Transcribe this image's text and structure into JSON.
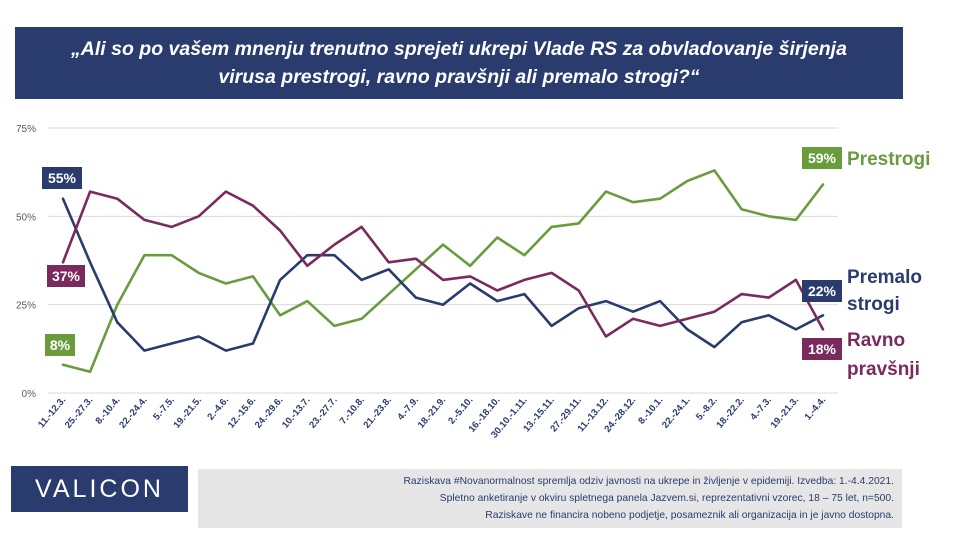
{
  "title": {
    "line1": "„Ali so po vašem mnenju trenutno sprejeti ukrepi Vlade RS za obvladovanje širjenja",
    "line2": "virusa prestrogi, ravno pravšnji ali premalo strogi?“"
  },
  "logo": "VALICON",
  "footnote": {
    "line1": "Raziskava #Novanormalnost spremlja odziv javnosti na ukrepe in življenje v epidemiji. Izvedba: 1.-4.4.2021.",
    "line2": "Spletno anketiranje v okviru spletnega panela Jazvem.si, reprezentativni vzorec, 18 – 75 let, n=500.",
    "line3": "Raziskave ne financira nobeno podjetje, posameznik ali organizacija in je javno dostopna."
  },
  "chart_data": {
    "type": "line",
    "categories": [
      "11.-12.3.",
      "25.-27.3.",
      "8.-10.4.",
      "22.-24.4.",
      "5.-7.5.",
      "19.-21.5.",
      "2.-4.6.",
      "12.-15.6.",
      "24.-29.6.",
      "10.-13.7.",
      "23.-27.7.",
      "7.-10.8.",
      "21.-23.8.",
      "4.-7.9.",
      "18.-21.9.",
      "2.-5.10.",
      "16.-18.10.",
      "30.10.-1.11.",
      "13.-15.11.",
      "27.-29.11.",
      "11.-13.12.",
      "24.-28.12.",
      "8.-10.1.",
      "22.-24.1.",
      "5.-8.2.",
      "18.-22.2.",
      "4.-7.3.",
      "19.-21.3.",
      "1.-4.4."
    ],
    "y_ticks": [
      0,
      25,
      50,
      75
    ],
    "y_tick_labels": [
      "0%",
      "25%",
      "50%",
      "75%"
    ],
    "ylim": [
      0,
      75
    ],
    "series": [
      {
        "name": "Prestrogi",
        "color": "#6a9c3e",
        "start_label": "8%",
        "end_label": "59%",
        "legend_lines": [
          "Prestrogi"
        ],
        "values": [
          8,
          6,
          25,
          39,
          39,
          34,
          31,
          33,
          22,
          26,
          19,
          21,
          28,
          35,
          42,
          36,
          44,
          39,
          47,
          48,
          57,
          54,
          55,
          60,
          63,
          52,
          50,
          49,
          59
        ]
      },
      {
        "name": "Premalo strogi",
        "color": "#2a3c6e",
        "start_label": "55%",
        "end_label": "22%",
        "legend_lines": [
          "Premalo",
          "strogi"
        ],
        "values": [
          55,
          37,
          20,
          12,
          14,
          16,
          12,
          14,
          32,
          39,
          39,
          32,
          35,
          27,
          25,
          31,
          26,
          28,
          19,
          24,
          26,
          23,
          26,
          18,
          13,
          20,
          22,
          18,
          22
        ]
      },
      {
        "name": "Ravno pravšnji",
        "color": "#7b2a5e",
        "start_label": "37%",
        "end_label": "18%",
        "legend_lines": [
          "Ravno",
          "pravšnji"
        ],
        "values": [
          37,
          57,
          55,
          49,
          47,
          50,
          57,
          53,
          46,
          36,
          42,
          47,
          37,
          38,
          32,
          33,
          29,
          32,
          34,
          29,
          16,
          21,
          19,
          21,
          23,
          28,
          27,
          32,
          18
        ]
      }
    ],
    "grid": "horizontal",
    "legend": "right, inline labels"
  }
}
